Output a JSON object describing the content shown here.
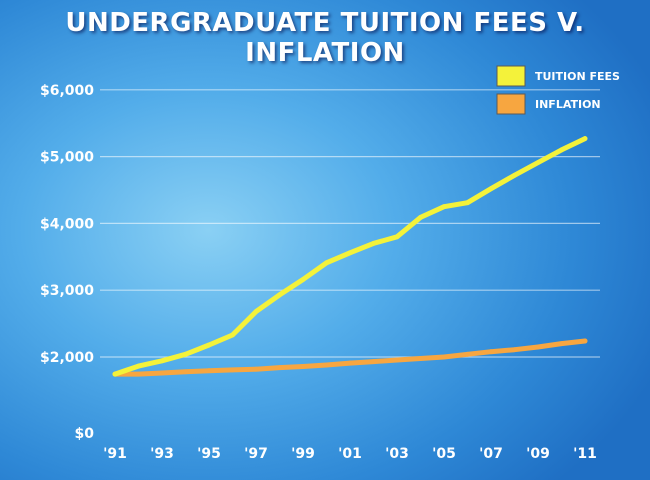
{
  "chart_data": {
    "type": "line",
    "title": "UNDERGRADUATE TUITION FEES V. INFLATION",
    "xlabel": "",
    "ylabel": "",
    "x": [
      1991,
      1992,
      1993,
      1994,
      1995,
      1996,
      1997,
      1998,
      1999,
      2000,
      2001,
      2002,
      2003,
      2004,
      2005,
      2006,
      2007,
      2008,
      2009,
      2010,
      2011
    ],
    "xticks": [
      {
        "year": 1991,
        "label": "'91"
      },
      {
        "year": 1993,
        "label": "'93"
      },
      {
        "year": 1995,
        "label": "'95"
      },
      {
        "year": 1997,
        "label": "'97"
      },
      {
        "year": 1999,
        "label": "'99"
      },
      {
        "year": 2001,
        "label": "'01"
      },
      {
        "year": 2003,
        "label": "'03"
      },
      {
        "year": 2005,
        "label": "'05"
      },
      {
        "year": 2007,
        "label": "'07"
      },
      {
        "year": 2009,
        "label": "'09"
      },
      {
        "year": 2011,
        "label": "'11"
      }
    ],
    "yticks": [
      {
        "value": 0,
        "label": "$0"
      },
      {
        "value": 2000,
        "label": "$2,000"
      },
      {
        "value": 3000,
        "label": "$3,000"
      },
      {
        "value": 4000,
        "label": "$4,000"
      },
      {
        "value": 5000,
        "label": "$5,000"
      },
      {
        "value": 6000,
        "label": "$6,000"
      }
    ],
    "series": [
      {
        "name": "TUITION FEES",
        "color": "#f4f23a",
        "values": [
          1550,
          1760,
          1900,
          2040,
          2180,
          2330,
          2680,
          2930,
          3160,
          3410,
          3560,
          3700,
          3800,
          4090,
          4250,
          4310,
          4520,
          4720,
          4910,
          5100,
          5270
        ]
      },
      {
        "name": "INFLATION",
        "color": "#f7a640",
        "values": [
          1550,
          1550,
          1580,
          1610,
          1640,
          1660,
          1680,
          1720,
          1750,
          1790,
          1840,
          1880,
          1920,
          1960,
          2000,
          2040,
          2080,
          2110,
          2150,
          2200,
          2240
        ]
      }
    ],
    "grid": true,
    "legend_position": "top-right"
  }
}
